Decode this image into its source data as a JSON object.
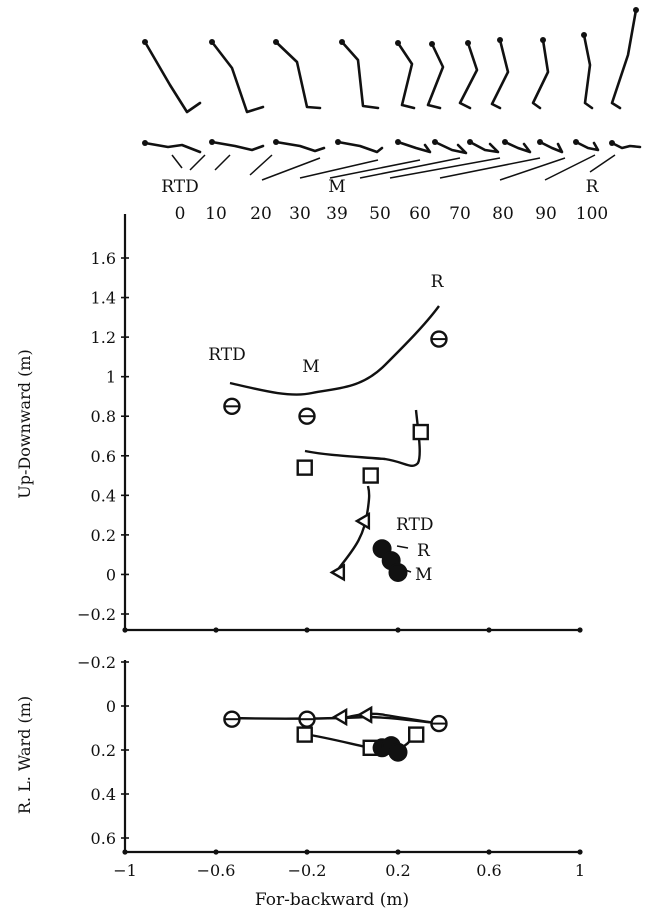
{
  "chart_data": [
    {
      "type": "stick-figure-sequence",
      "phase_labels": [
        "RTD",
        "M",
        "R"
      ],
      "phase_ticks": [
        "0",
        "10",
        "20",
        "30",
        "39",
        "50",
        "60",
        "70",
        "80",
        "90",
        "100"
      ]
    },
    {
      "type": "line",
      "xlabel": "",
      "ylabel": "Up-Downward (m)",
      "xlim": [
        -1,
        1
      ],
      "ylim": [
        -0.2,
        1.6
      ],
      "x_ticks": [
        "-1",
        "-0.6",
        "-0.2",
        "0.2",
        "0.6",
        "1"
      ],
      "y_ticks": [
        "-0.2",
        "0",
        "0.2",
        "0.4",
        "0.6",
        "0.8",
        "1",
        "1.2",
        "1.4",
        "1.6"
      ],
      "series": [
        {
          "marker": "circle",
          "points": [
            [
              -0.53,
              0.85
            ],
            [
              -0.2,
              0.8
            ],
            [
              0.38,
              1.19
            ]
          ]
        },
        {
          "marker": "square",
          "points": [
            [
              -0.21,
              0.54
            ],
            [
              0.08,
              0.5
            ],
            [
              0.3,
              0.72
            ]
          ]
        },
        {
          "marker": "triangle",
          "points": [
            [
              -0.06,
              0.01
            ],
            [
              0.05,
              0.27
            ]
          ]
        },
        {
          "marker": "filled-circle",
          "points": [
            [
              0.13,
              0.13
            ],
            [
              0.17,
              0.07
            ],
            [
              0.2,
              0.01
            ]
          ]
        }
      ],
      "annotations": [
        {
          "text": "RTD",
          "x": -0.53,
          "y": 0.85
        },
        {
          "text": "M",
          "x": -0.2,
          "y": 0.8
        },
        {
          "text": "R",
          "x": 0.38,
          "y": 1.19
        },
        {
          "text": "RTD",
          "x": 0.13,
          "y": 0.13
        },
        {
          "text": "R",
          "x": 0.17,
          "y": 0.07
        },
        {
          "text": "M",
          "x": 0.2,
          "y": 0.01
        }
      ]
    },
    {
      "type": "line",
      "xlabel": "For-backward (m)",
      "ylabel": "R. L. Ward (m)",
      "xlim": [
        -1,
        1
      ],
      "ylim": [
        -0.2,
        0.6
      ],
      "y_inverted": true,
      "x_ticks": [
        "-1",
        "-0.6",
        "-0.2",
        "0.2",
        "0.6",
        "1"
      ],
      "y_ticks": [
        "-0.2",
        "0",
        "0.2",
        "0.4",
        "0.6"
      ],
      "series": [
        {
          "marker": "circle",
          "points": [
            [
              -0.53,
              0.06
            ],
            [
              -0.2,
              0.06
            ],
            [
              0.38,
              0.08
            ]
          ]
        },
        {
          "marker": "square",
          "points": [
            [
              -0.21,
              0.13
            ],
            [
              0.08,
              0.19
            ],
            [
              0.28,
              0.13
            ]
          ]
        },
        {
          "marker": "triangle",
          "points": [
            [
              -0.05,
              0.05
            ],
            [
              0.06,
              0.04
            ]
          ]
        },
        {
          "marker": "filled-circle",
          "points": [
            [
              0.13,
              0.19
            ],
            [
              0.17,
              0.18
            ],
            [
              0.2,
              0.21
            ]
          ]
        }
      ]
    }
  ]
}
